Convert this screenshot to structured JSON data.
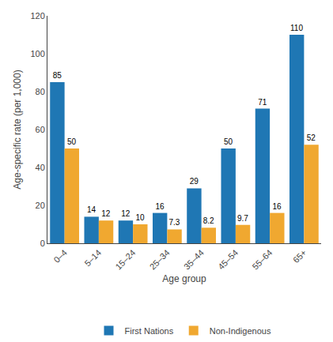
{
  "chart_data": {
    "type": "bar",
    "categories": [
      "0–4",
      "5–14",
      "15–24",
      "25–34",
      "35–44",
      "45–54",
      "55–64",
      "65+"
    ],
    "series": [
      {
        "name": "First Nations",
        "color": "#1f77b4",
        "values": [
          85,
          14,
          12,
          16,
          29,
          50,
          71,
          110
        ]
      },
      {
        "name": "Non-Indigenous",
        "color": "#f0a830",
        "values": [
          50,
          12,
          10,
          7.3,
          8.2,
          9.7,
          16,
          52
        ]
      }
    ],
    "xlabel": "Age group",
    "ylabel": "Age-specific rate (per 1,000)",
    "ylim": [
      0,
      120
    ],
    "yticks": [
      0,
      20,
      40,
      60,
      80,
      100,
      120
    ],
    "grid": false,
    "legend": "bottom",
    "data_labels": true
  }
}
